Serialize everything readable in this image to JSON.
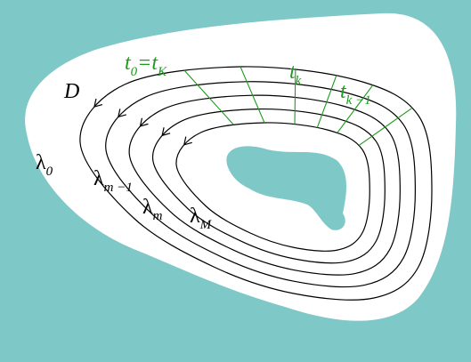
{
  "region": {
    "label": "D"
  },
  "contours": [
    {
      "main": "λ",
      "sub": "0"
    },
    {
      "main": "λ",
      "sub": "m −1"
    },
    {
      "main": "λ",
      "sub": "m"
    },
    {
      "main": "λ",
      "sub": "M"
    }
  ],
  "parameters": [
    [
      {
        "main": "t",
        "sub": "0"
      },
      {
        "main": "=t",
        "sub": "K"
      }
    ],
    [
      {
        "main": "t",
        "sub": "k"
      }
    ],
    [
      {
        "main": "t",
        "sub": "k −1"
      }
    ]
  ]
}
